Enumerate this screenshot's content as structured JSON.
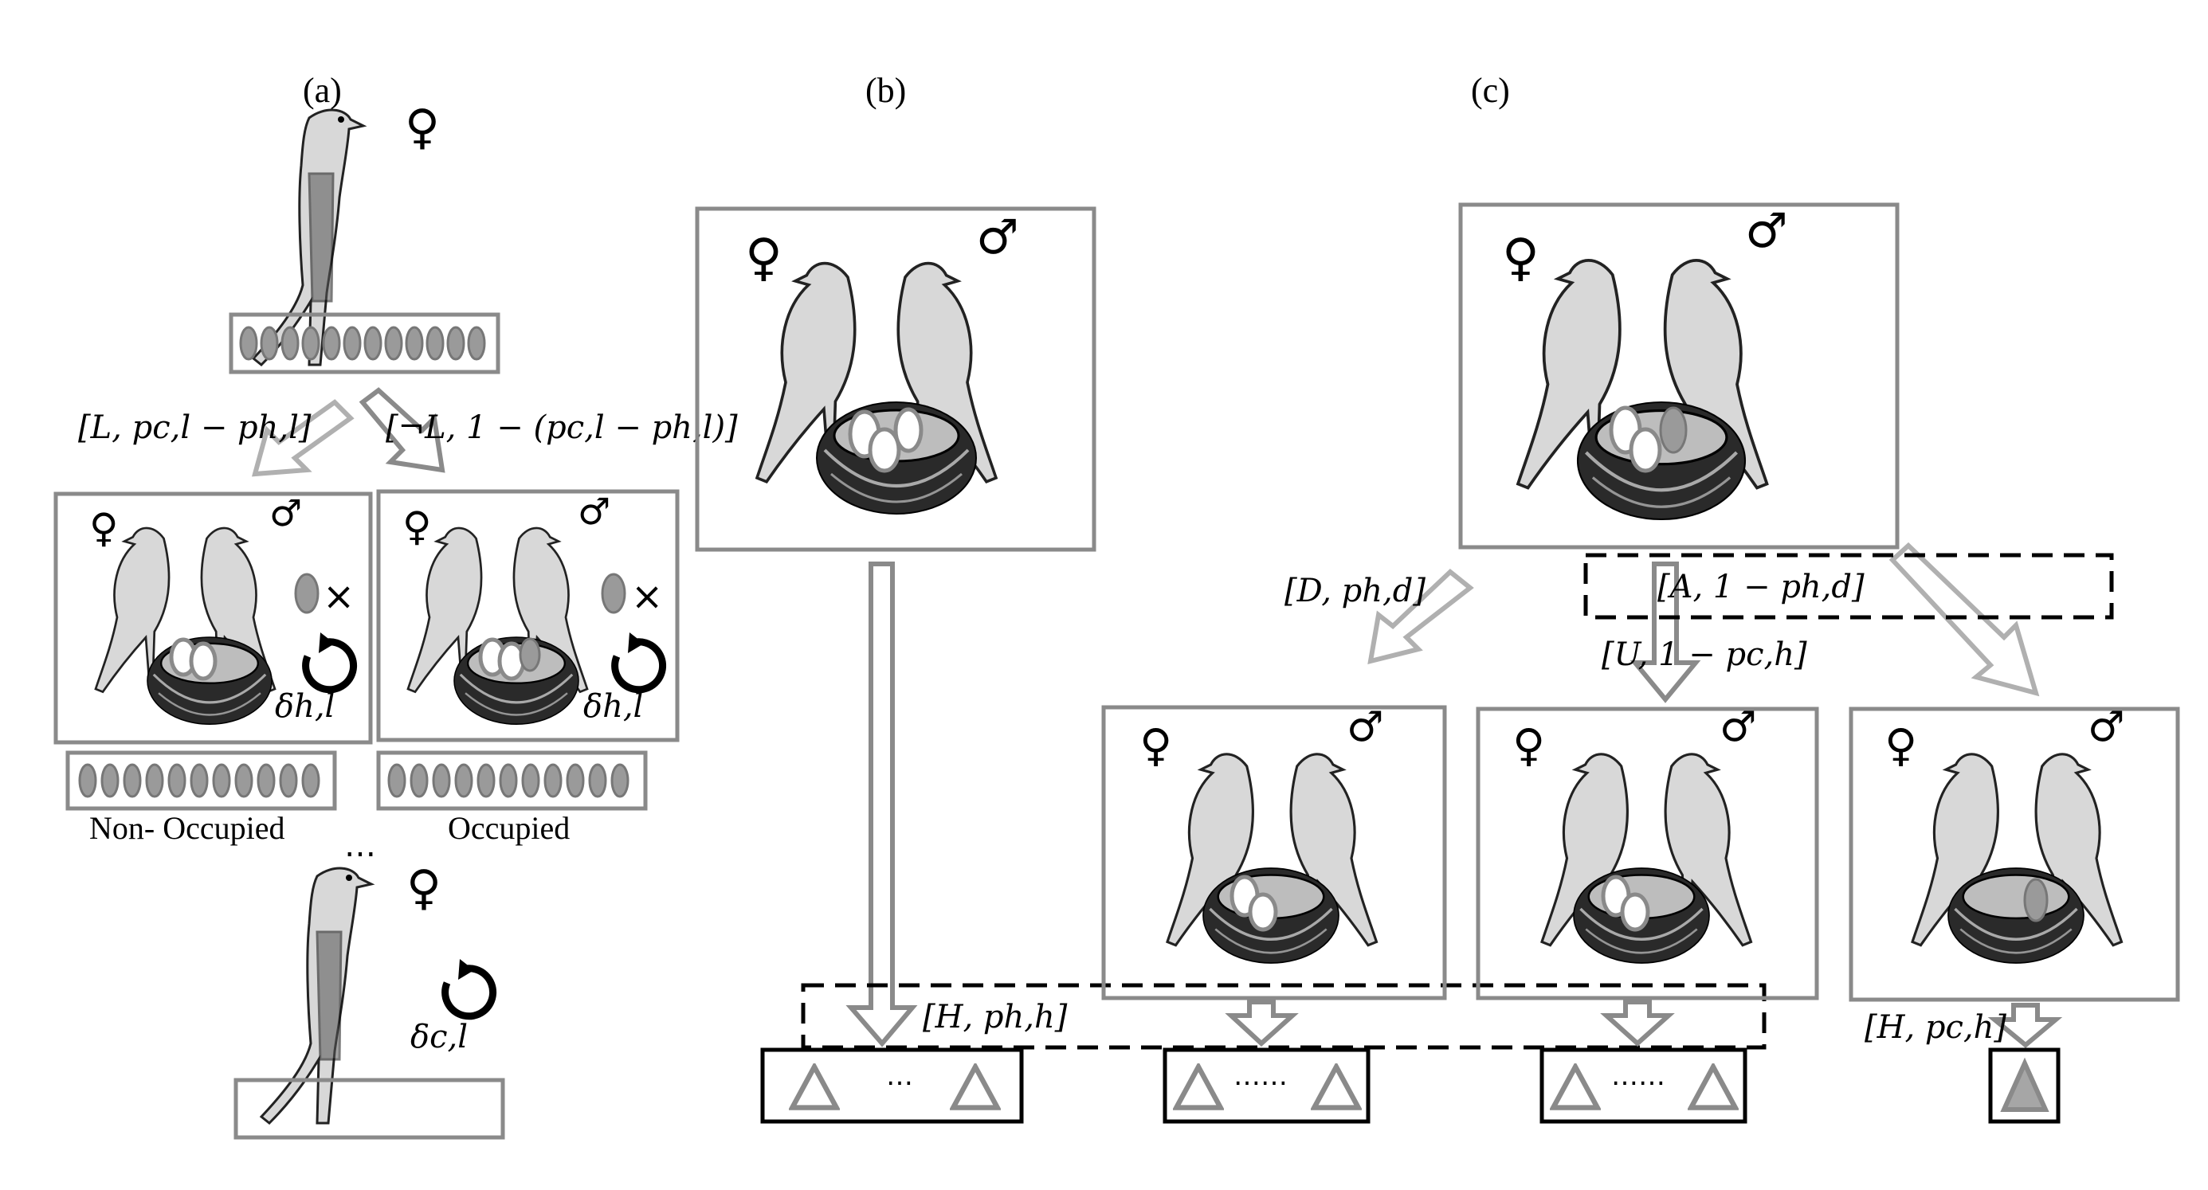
{
  "panels": {
    "a": {
      "label": "(a)"
    },
    "b": {
      "label": "(b)"
    },
    "c": {
      "label": "(c)"
    }
  },
  "symbols": {
    "female": "♀",
    "male": "♂",
    "cross": "×",
    "ellipsis": "…",
    "ellipsis_long": "……"
  },
  "panel_a": {
    "edge_left": "[L, pc,l − ph,l]",
    "edge_right": "[¬L, 1 − (pc,l − ph,l)]",
    "delta_h": "δh,l",
    "delta_c": "δc,l",
    "caption_left": "Non- Occupied",
    "caption_right": "Occupied",
    "top_egg_count": 12,
    "box_egg_count": 11
  },
  "panel_c": {
    "edge_d": "[D, ph,d]",
    "edge_a": "[A, 1 − ph,d]",
    "edge_u": "[U,   1 − pc,h]",
    "edge_h_cuckoo": "[H, pc,h]"
  },
  "shared": {
    "edge_h_host": "[H, ph,h]"
  },
  "icons": [
    "female-icon",
    "male-icon",
    "replay-icon",
    "cuckoo-bird",
    "host-bird-pair",
    "nest",
    "egg",
    "triangle-offspring"
  ]
}
